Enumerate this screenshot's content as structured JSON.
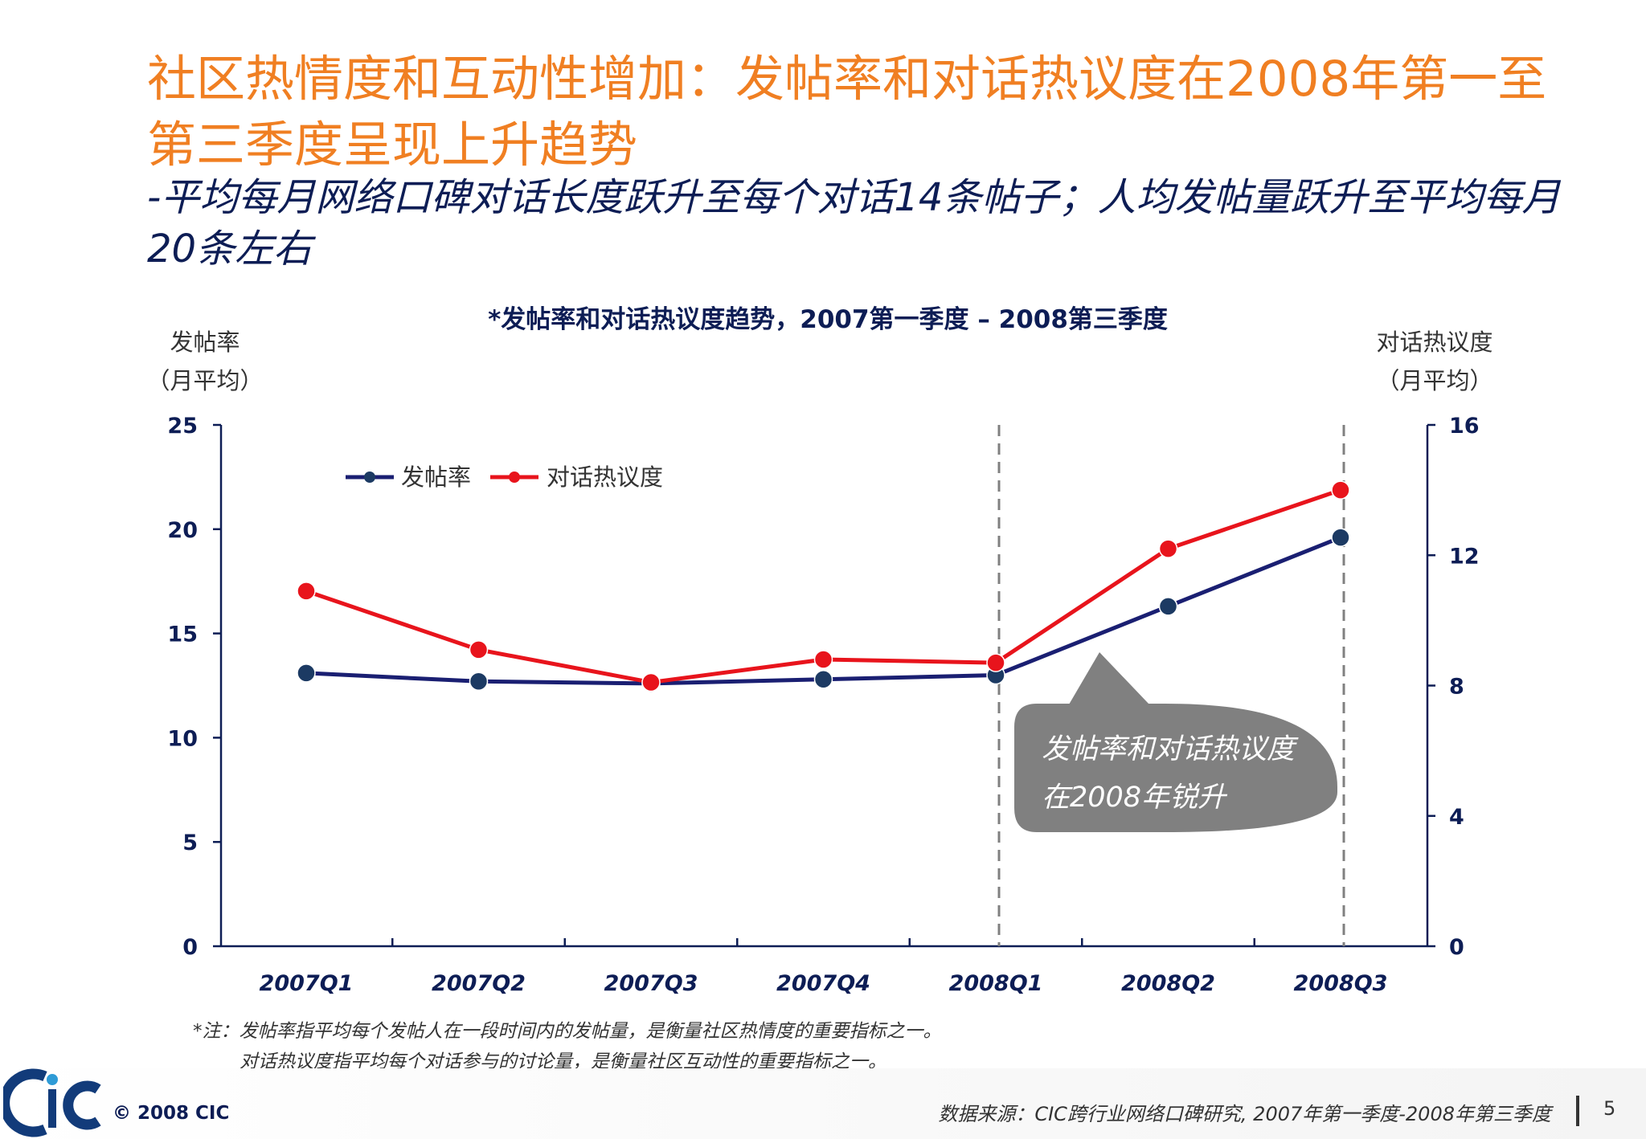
{
  "slide": {
    "title": "社区热情度和互动性增加：发帖率和对话热议度在2008年第一至第三季度呈现上升趋势",
    "subtitle": "-平均每月网络口碑对话长度跃升至每个对话14条帖子；人均发帖量跃升至平均每月20条左右",
    "notes": [
      "*注：发帖率指平均每个发帖人在一段时间内的发帖量，是衡量社区热情度的重要指标之一。",
      "对话热议度指平均每个对话参与的讨论量，是衡量社区互动性的重要指标之一。"
    ],
    "copyright": "© 2008  CIC",
    "source": "数据来源：CIC跨行业网络口碑研究, 2007年第一季度-2008年第三季度",
    "page_number": "5",
    "logo_text": "CIC"
  },
  "chart_data": {
    "type": "line",
    "title": "*发帖率和对话热议度趋势，2007第一季度 – 2008第三季度",
    "ylabel_left": "发帖率",
    "ylabel_left_sub": "（月平均）",
    "ylabel_right": "对话热议度",
    "ylabel_right_sub": "（月平均）",
    "categories": [
      "2007Q1",
      "2007Q2",
      "2007Q3",
      "2007Q4",
      "2008Q1",
      "2008Q2",
      "2008Q3"
    ],
    "ylim_left": [
      0,
      25
    ],
    "yticks_left": [
      0,
      5,
      10,
      15,
      20,
      25
    ],
    "ylim_right": [
      0,
      16
    ],
    "yticks_right": [
      0,
      4,
      8,
      12,
      16
    ],
    "series": [
      {
        "name": "发帖率",
        "axis": "left",
        "color": "#1a1f72",
        "marker_color": "#1c3a63",
        "values": [
          13.1,
          12.7,
          12.6,
          12.8,
          13.0,
          16.3,
          19.6
        ]
      },
      {
        "name": "对话热议度",
        "axis": "right",
        "color": "#e8141c",
        "marker_color": "#e8141c",
        "values": [
          10.9,
          9.1,
          8.1,
          8.8,
          8.7,
          12.2,
          14.0
        ]
      }
    ],
    "dashed_verticals": [
      "2008Q1",
      "2008Q3"
    ],
    "annotation": {
      "lines": [
        "发帖率和对话热议度",
        "在2008年锐升"
      ],
      "color": "#808080"
    },
    "legend_position": "top-left",
    "grid": false,
    "axis_color": "#0d1d55"
  }
}
